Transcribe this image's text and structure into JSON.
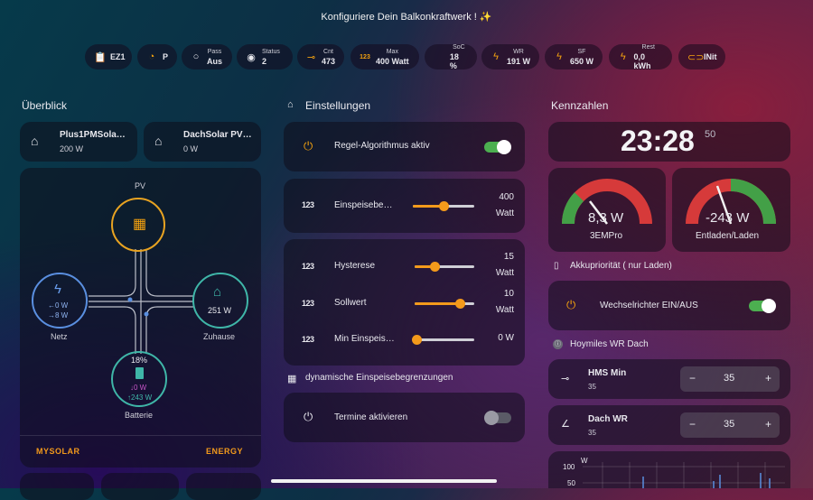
{
  "title": "Konfiguriere Dein Balkonkraftwerk ! ✨",
  "chips": [
    {
      "icon": "📋",
      "label": "",
      "value": "EZ1"
    },
    {
      "icon": "◔",
      "label": "",
      "value": "P"
    },
    {
      "icon": "○",
      "label": "Pass",
      "value": "Aus"
    },
    {
      "icon": "◉",
      "label": "Status",
      "value": "2"
    },
    {
      "icon": "⊸",
      "label": "Cnt",
      "value": "473"
    },
    {
      "icon": "123",
      "label": "Max",
      "value": "400 Watt"
    },
    {
      "icon": "",
      "label": "SoC",
      "value": "18 %"
    },
    {
      "icon": "ϟ",
      "label": "WR",
      "value": "191 W"
    },
    {
      "icon": "ϟ",
      "label": "SF",
      "value": "650 W"
    },
    {
      "icon": "ϟ",
      "label": "Rest",
      "value": "0,0 kWh"
    },
    {
      "icon": "⊂⊃",
      "label": "",
      "value": "INit"
    }
  ],
  "left": {
    "heading": "Überblick",
    "devices": [
      {
        "name": "Plus1PMSola…",
        "value": "200 W"
      },
      {
        "name": "DachSolar PV…",
        "value": "0 W"
      }
    ],
    "flow": {
      "pv_label": "PV",
      "netz_in": "←0 W",
      "netz_out": "→8 W",
      "netz_label": "Netz",
      "home_value": "251 W",
      "home_label": "Zuhause",
      "battery_soc": "18%",
      "battery_in": "↓0 W",
      "battery_out": "↑243 W",
      "battery_label": "Batterie"
    },
    "footer_left": "MYSOLAR",
    "footer_right": "ENERGY"
  },
  "middle": {
    "heading": "Einstellungen",
    "regel_label": "Regel-Algorithmus aktiv",
    "einspeise_label": "Einspeisebe…",
    "einspeise_value": "400",
    "einspeise_unit": "Watt",
    "einspeise_pct": 0.5,
    "hysterese_label": "Hysterese",
    "hysterese_value": "15",
    "hysterese_unit": "Watt",
    "hysterese_pct": 0.33,
    "sollwert_label": "Sollwert",
    "sollwert_value": "10",
    "sollwert_unit": "Watt",
    "sollwert_pct": 0.75,
    "min_label": "Min Einspeis…",
    "min_value": "0 W",
    "min_pct": 0.0,
    "dyn_heading": "dynamische Einspeisebegrenzungen",
    "termine_label": "Termine aktivieren"
  },
  "right": {
    "heading": "Kennzahlen",
    "clock": "23:28",
    "clock_sec": "50",
    "gauge1_value": "8,3 W",
    "gauge1_label": "3EMPro",
    "gauge2_value": "-243 W",
    "gauge2_label": "Entladen/Laden",
    "akku_heading": "Akkupriorität ( nur Laden)",
    "wr_label": "Wechselrichter EIN/AUS",
    "hoymiles_heading": "Hoymiles WR Dach",
    "hms_label": "HMS Min",
    "hms_sub": "35",
    "hms_value": "35",
    "dach_label": "Dach WR",
    "dach_sub": "35",
    "dach_value": "35",
    "minus": "−",
    "plus": "+",
    "chart_unit": "W",
    "chart_tick1": "100",
    "chart_tick2": "50"
  },
  "colors": {
    "accent": "#f39a1b",
    "home": "#3fb6a8",
    "netz": "#5a8fe0",
    "battery_out": "#c957c9"
  }
}
